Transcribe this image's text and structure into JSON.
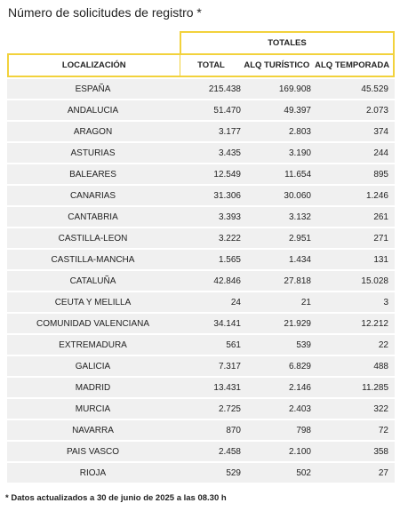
{
  "title": "Número de solicitudes de registro *",
  "group_header": "TOTALES",
  "columns": [
    "LOCALIZACIÓN",
    "TOTAL",
    "ALQ TURÍSTICO",
    "ALQ TEMPORADA"
  ],
  "rows": [
    {
      "name": "ESPAÑA",
      "total": "215.438",
      "turistico": "169.908",
      "temporada": "45.529"
    },
    {
      "name": "ANDALUCIA",
      "total": "51.470",
      "turistico": "49.397",
      "temporada": "2.073"
    },
    {
      "name": "ARAGON",
      "total": "3.177",
      "turistico": "2.803",
      "temporada": "374"
    },
    {
      "name": "ASTURIAS",
      "total": "3.435",
      "turistico": "3.190",
      "temporada": "244"
    },
    {
      "name": "BALEARES",
      "total": "12.549",
      "turistico": "11.654",
      "temporada": "895"
    },
    {
      "name": "CANARIAS",
      "total": "31.306",
      "turistico": "30.060",
      "temporada": "1.246"
    },
    {
      "name": "CANTABRIA",
      "total": "3.393",
      "turistico": "3.132",
      "temporada": "261"
    },
    {
      "name": "CASTILLA-LEON",
      "total": "3.222",
      "turistico": "2.951",
      "temporada": "271"
    },
    {
      "name": "CASTILLA-MANCHA",
      "total": "1.565",
      "turistico": "1.434",
      "temporada": "131"
    },
    {
      "name": "CATALUÑA",
      "total": "42.846",
      "turistico": "27.818",
      "temporada": "15.028"
    },
    {
      "name": "CEUTA Y MELILLA",
      "total": "24",
      "turistico": "21",
      "temporada": "3"
    },
    {
      "name": "COMUNIDAD VALENCIANA",
      "total": "34.141",
      "turistico": "21.929",
      "temporada": "12.212"
    },
    {
      "name": "EXTREMADURA",
      "total": "561",
      "turistico": "539",
      "temporada": "22"
    },
    {
      "name": "GALICIA",
      "total": "7.317",
      "turistico": "6.829",
      "temporada": "488"
    },
    {
      "name": "MADRID",
      "total": "13.431",
      "turistico": "2.146",
      "temporada": "11.285"
    },
    {
      "name": "MURCIA",
      "total": "2.725",
      "turistico": "2.403",
      "temporada": "322"
    },
    {
      "name": "NAVARRA",
      "total": "870",
      "turistico": "798",
      "temporada": "72"
    },
    {
      "name": "PAIS VASCO",
      "total": "2.458",
      "turistico": "2.100",
      "temporada": "358"
    },
    {
      "name": "RIOJA",
      "total": "529",
      "turistico": "502",
      "temporada": "27"
    }
  ],
  "footnote": "* Datos actualizados a 30 de junio de 2025 a las 08.30 h",
  "colors": {
    "accent_border": "#f2d23c",
    "row_background": "#f0f0f0"
  }
}
